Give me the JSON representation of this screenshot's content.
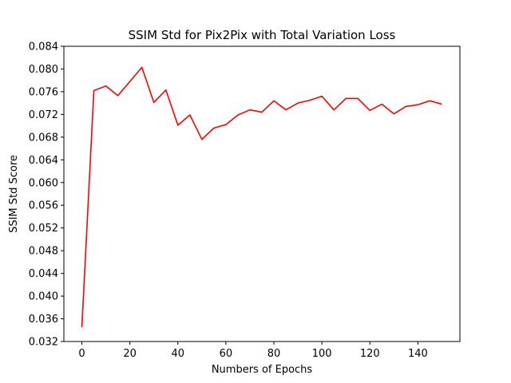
{
  "chart_data": {
    "type": "line",
    "title": "SSIM Std for Pix2Pix with Total Variation Loss",
    "xlabel": "Numbers of Epochs",
    "ylabel": "SSIM Std Score",
    "xlim": [
      -7.5,
      157.5
    ],
    "ylim": [
      0.032,
      0.084
    ],
    "xticks": [
      0,
      20,
      40,
      60,
      80,
      100,
      120,
      140
    ],
    "yticks": [
      0.032,
      0.036,
      0.04,
      0.044,
      0.048,
      0.052,
      0.056,
      0.06,
      0.064,
      0.068,
      0.072,
      0.076,
      0.08,
      0.084
    ],
    "ytick_labels": [
      "0.032",
      "0.036",
      "0.040",
      "0.044",
      "0.048",
      "0.052",
      "0.056",
      "0.060",
      "0.064",
      "0.068",
      "0.072",
      "0.076",
      "0.080",
      "0.084"
    ],
    "grid": false,
    "series": [
      {
        "color": "#ff0000",
        "x": [
          0,
          5,
          10,
          15,
          20,
          25,
          30,
          35,
          40,
          45,
          50,
          55,
          60,
          65,
          70,
          75,
          80,
          85,
          90,
          95,
          100,
          105,
          110,
          115,
          120,
          125,
          130,
          135,
          140,
          145,
          150
        ],
        "y": [
          0.0345,
          0.0762,
          0.077,
          0.0753,
          0.0778,
          0.0803,
          0.0741,
          0.0763,
          0.0701,
          0.0719,
          0.0676,
          0.0696,
          0.0702,
          0.0719,
          0.0728,
          0.0724,
          0.0744,
          0.0728,
          0.074,
          0.0745,
          0.0752,
          0.0728,
          0.0748,
          0.0748,
          0.0727,
          0.0738,
          0.0721,
          0.0734,
          0.0737,
          0.0744,
          0.0738
        ]
      }
    ]
  }
}
